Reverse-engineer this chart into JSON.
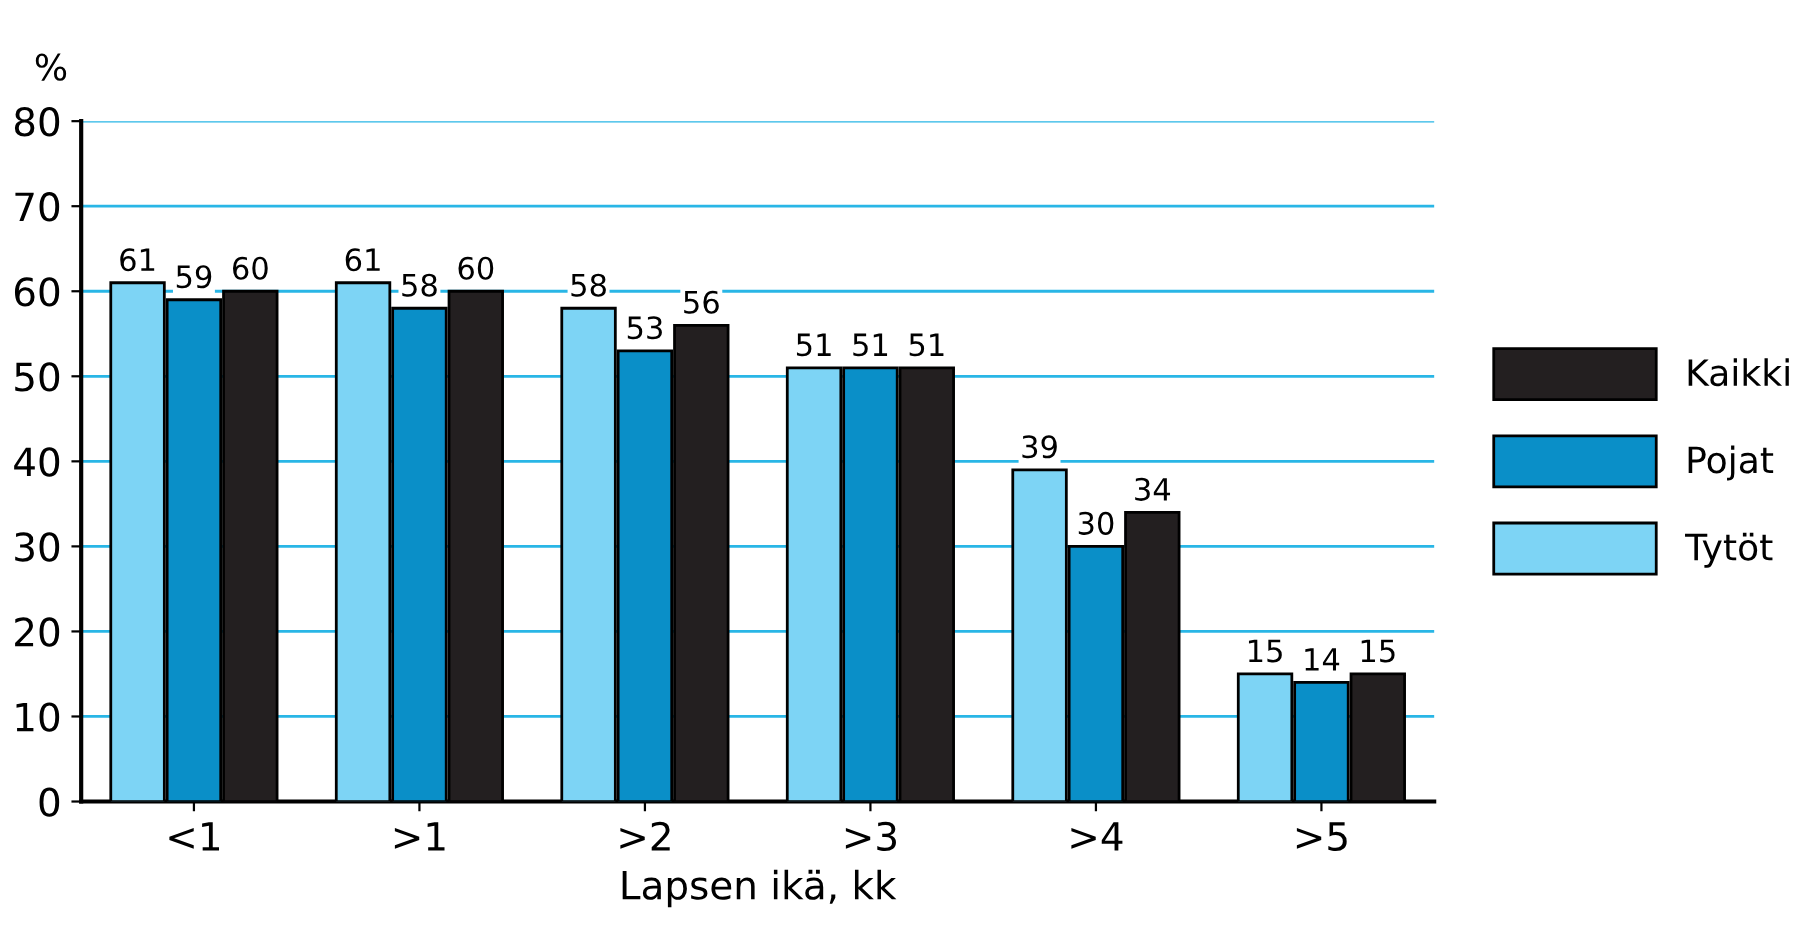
{
  "chart_data": {
    "type": "bar",
    "ylabel": "%",
    "xlabel": "Lapsen ikä, kk",
    "categories": [
      "<1",
      ">1",
      ">2",
      ">3",
      ">4",
      ">5"
    ],
    "series": [
      {
        "name": "Tytöt",
        "color": "#7dd4f5",
        "values": [
          61,
          61,
          58,
          51,
          39,
          15
        ]
      },
      {
        "name": "Pojat",
        "color": "#0a8fc8",
        "values": [
          59,
          58,
          53,
          51,
          30,
          14
        ]
      },
      {
        "name": "Kaikki",
        "color": "#231f20",
        "values": [
          60,
          60,
          56,
          51,
          34,
          15
        ]
      }
    ],
    "ylim": [
      0,
      80
    ],
    "yticks": [
      0,
      10,
      20,
      30,
      40,
      50,
      60,
      70,
      80
    ],
    "grid": "y",
    "legend": "right",
    "data_labels": true
  }
}
